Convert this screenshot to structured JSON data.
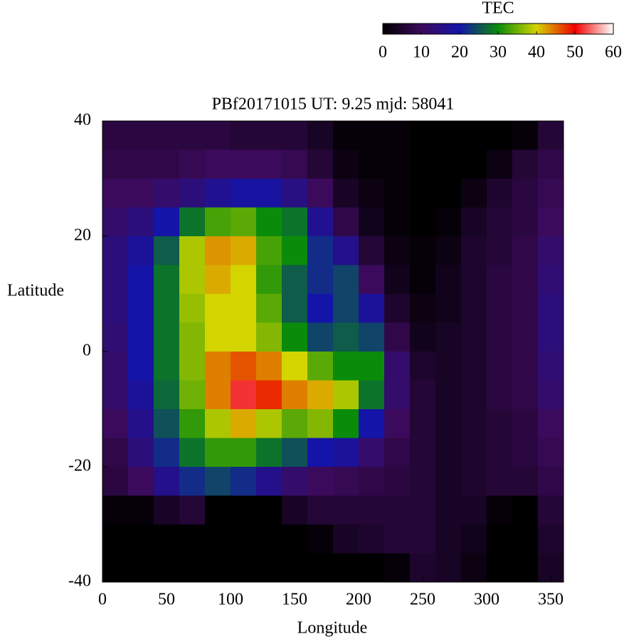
{
  "chart_data": {
    "type": "heatmap",
    "title": "PBf20171015  UT: 9.25  mjd: 58041",
    "x_label": "Longitude",
    "y_label": "Latitude",
    "colorbar_title": "TEC",
    "clim": [
      0,
      60
    ],
    "colorbar_ticks": [
      0,
      10,
      20,
      30,
      40,
      50,
      60
    ],
    "colors": [
      "#000000",
      "#3c0a5c",
      "#1414a8",
      "#0a8c0a",
      "#d4d400",
      "#f00000",
      "#ffffff"
    ],
    "xlim": [
      0,
      360
    ],
    "xticks": [
      0,
      50,
      100,
      150,
      200,
      250,
      300,
      350
    ],
    "ylim": [
      -40,
      40
    ],
    "yticks": [
      -40,
      -20,
      0,
      20,
      40
    ],
    "x": [
      10,
      30,
      50,
      70,
      90,
      110,
      130,
      150,
      170,
      190,
      210,
      230,
      250,
      270,
      290,
      310,
      330,
      350
    ],
    "y": [
      37.5,
      32.5,
      27.5,
      22.5,
      17.5,
      12.5,
      7.5,
      2.5,
      -2.5,
      -7.5,
      -12.5,
      -17.5,
      -22.5,
      -27.5,
      -32.5,
      -37.5
    ],
    "z": [
      [
        7,
        7,
        7,
        7,
        7,
        6,
        6,
        6,
        4,
        1,
        1,
        1,
        0,
        0,
        0,
        0,
        1,
        6
      ],
      [
        8,
        8,
        8,
        9,
        10,
        10,
        10,
        9,
        6,
        2,
        1,
        1,
        0,
        0,
        0,
        2,
        6,
        8
      ],
      [
        10,
        10,
        12,
        14,
        17,
        19,
        19,
        15,
        10,
        4,
        2,
        1,
        0,
        0,
        2,
        5,
        7,
        9
      ],
      [
        12,
        14,
        20,
        28,
        33,
        34,
        30,
        28,
        17,
        8,
        3,
        1,
        0,
        1,
        4,
        6,
        7,
        10
      ],
      [
        14,
        18,
        26,
        38,
        43,
        42,
        33,
        30,
        22,
        16,
        6,
        2,
        1,
        2,
        5,
        6,
        8,
        12
      ],
      [
        14,
        20,
        28,
        38,
        42,
        40,
        32,
        26,
        22,
        24,
        10,
        3,
        1,
        3,
        5,
        7,
        8,
        13
      ],
      [
        14,
        20,
        28,
        37,
        40,
        40,
        34,
        26,
        20,
        24,
        18,
        5,
        2,
        3,
        5,
        7,
        8,
        14
      ],
      [
        13,
        20,
        28,
        36,
        40,
        40,
        36,
        30,
        24,
        26,
        24,
        8,
        3,
        4,
        5,
        7,
        8,
        14
      ],
      [
        12,
        20,
        28,
        36,
        44,
        46,
        44,
        40,
        34,
        30,
        30,
        12,
        5,
        4,
        5,
        7,
        8,
        13
      ],
      [
        12,
        18,
        27,
        35,
        44,
        52,
        48,
        44,
        42,
        38,
        28,
        12,
        6,
        4,
        5,
        7,
        8,
        12
      ],
      [
        10,
        16,
        25,
        32,
        38,
        42,
        38,
        34,
        36,
        30,
        20,
        10,
        6,
        4,
        5,
        6,
        7,
        10
      ],
      [
        8,
        14,
        22,
        28,
        32,
        32,
        28,
        25,
        20,
        18,
        12,
        8,
        6,
        4,
        5,
        6,
        7,
        9
      ],
      [
        7,
        10,
        16,
        22,
        24,
        22,
        16,
        12,
        10,
        9,
        8,
        7,
        6,
        4,
        5,
        6,
        6,
        8
      ],
      [
        1,
        1,
        4,
        6,
        0,
        0,
        0,
        4,
        6,
        6,
        6,
        6,
        6,
        4,
        4,
        1,
        0,
        6
      ],
      [
        0,
        0,
        0,
        0,
        0,
        0,
        0,
        0,
        1,
        4,
        5,
        6,
        6,
        4,
        3,
        0,
        0,
        5
      ],
      [
        0,
        0,
        0,
        0,
        0,
        0,
        0,
        0,
        0,
        0,
        0,
        1,
        5,
        4,
        2,
        0,
        0,
        4
      ]
    ]
  }
}
